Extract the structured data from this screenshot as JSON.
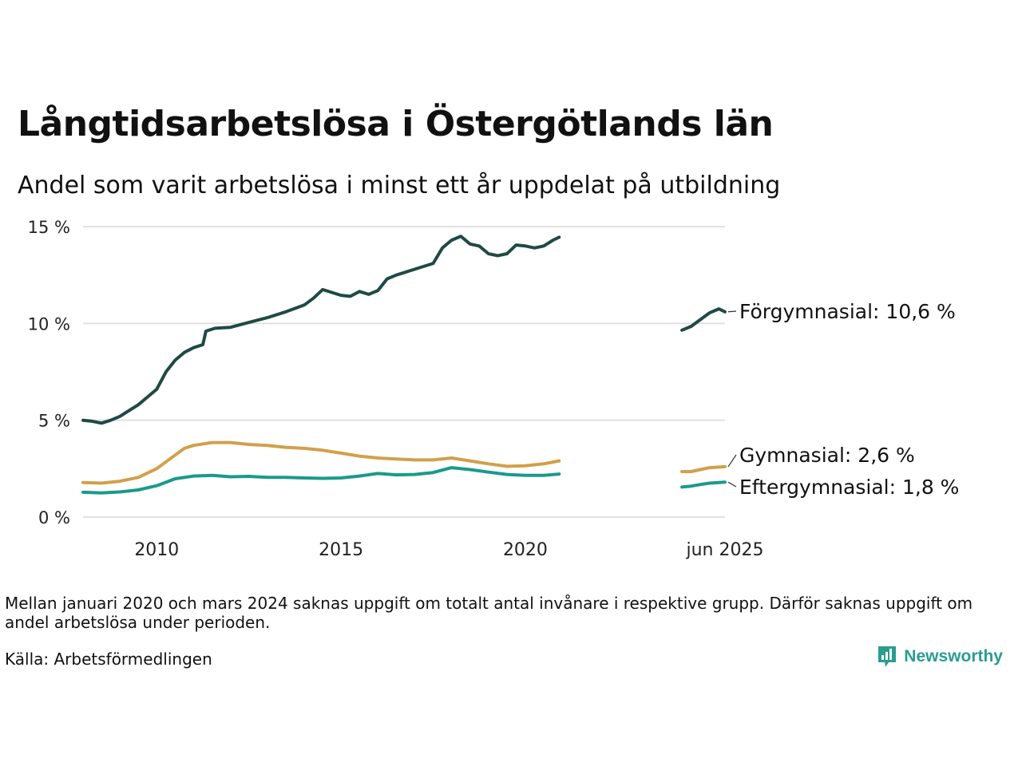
{
  "title": "Långtidsarbetslösa i Östergötlands län",
  "subtitle": "Andel som varit arbetslösa i minst ett år uppdelat på utbildning",
  "note": "Mellan januari 2020 och mars 2024 saknas uppgift om totalt antal invånare i respektive grupp. Därför saknas uppgift om andel arbetslösa under perioden.",
  "source": "Källa: Arbetsförmedlingen",
  "logo": {
    "text": "Newsworthy",
    "icon": "bar-chart-speech-bubble-icon",
    "color": "#2a9d8f"
  },
  "chart_data": {
    "type": "line",
    "xlim": [
      "2008-01",
      "2025-06"
    ],
    "ylim": [
      0,
      15
    ],
    "y_ticks": [
      {
        "value": 0,
        "label": "0 %"
      },
      {
        "value": 5,
        "label": "5 %"
      },
      {
        "value": 10,
        "label": "10 %"
      },
      {
        "value": 15,
        "label": "15 %"
      }
    ],
    "x_ticks": [
      {
        "value": "2010-01",
        "label": "2010"
      },
      {
        "value": "2015-01",
        "label": "2015"
      },
      {
        "value": "2020-01",
        "label": "2020"
      },
      {
        "value": "2025-06",
        "label": "jun 2025"
      }
    ],
    "grid": "horizontal",
    "legend": "end-of-line labels",
    "series": [
      {
        "label": "Förgymnasial: 10,6 %",
        "color": "#1f4a45",
        "segments": [
          [
            [
              "2008-01",
              5.0
            ],
            [
              "2008-04",
              4.95
            ],
            [
              "2008-07",
              4.85
            ],
            [
              "2008-10",
              5.0
            ],
            [
              "2009-01",
              5.2
            ],
            [
              "2009-04",
              5.5
            ],
            [
              "2009-07",
              5.8
            ],
            [
              "2009-10",
              6.2
            ],
            [
              "2010-01",
              6.6
            ],
            [
              "2010-04",
              7.5
            ],
            [
              "2010-07",
              8.1
            ],
            [
              "2010-10",
              8.5
            ],
            [
              "2011-01",
              8.75
            ],
            [
              "2011-04",
              8.9
            ],
            [
              "2011-05",
              9.6
            ],
            [
              "2011-08",
              9.75
            ],
            [
              "2012-01",
              9.8
            ],
            [
              "2012-07",
              10.05
            ],
            [
              "2013-01",
              10.3
            ],
            [
              "2013-07",
              10.6
            ],
            [
              "2014-01",
              10.95
            ],
            [
              "2014-04",
              11.3
            ],
            [
              "2014-07",
              11.75
            ],
            [
              "2014-10",
              11.6
            ],
            [
              "2015-01",
              11.45
            ],
            [
              "2015-04",
              11.4
            ],
            [
              "2015-07",
              11.65
            ],
            [
              "2015-10",
              11.5
            ],
            [
              "2016-01",
              11.7
            ],
            [
              "2016-04",
              12.3
            ],
            [
              "2016-07",
              12.5
            ],
            [
              "2017-01",
              12.8
            ],
            [
              "2017-07",
              13.1
            ],
            [
              "2017-10",
              13.9
            ],
            [
              "2018-01",
              14.3
            ],
            [
              "2018-04",
              14.5
            ],
            [
              "2018-07",
              14.1
            ],
            [
              "2018-10",
              14.0
            ],
            [
              "2019-01",
              13.6
            ],
            [
              "2019-04",
              13.5
            ],
            [
              "2019-07",
              13.6
            ],
            [
              "2019-10",
              14.05
            ],
            [
              "2020-01",
              14.0
            ],
            [
              "2020-04",
              13.9
            ],
            [
              "2020-07",
              14.0
            ],
            [
              "2020-10",
              14.3
            ],
            [
              "2020-12",
              14.45
            ]
          ],
          [
            [
              "2024-04",
              9.65
            ],
            [
              "2024-07",
              9.85
            ],
            [
              "2024-10",
              10.2
            ],
            [
              "2025-01",
              10.55
            ],
            [
              "2025-04",
              10.75
            ],
            [
              "2025-06",
              10.6
            ]
          ]
        ]
      },
      {
        "label": "Gymnasial:  2,6 %",
        "color": "#d1a04a",
        "segments": [
          [
            [
              "2008-01",
              1.78
            ],
            [
              "2008-07",
              1.75
            ],
            [
              "2009-01",
              1.85
            ],
            [
              "2009-07",
              2.05
            ],
            [
              "2010-01",
              2.5
            ],
            [
              "2010-07",
              3.2
            ],
            [
              "2010-10",
              3.55
            ],
            [
              "2011-01",
              3.7
            ],
            [
              "2011-07",
              3.85
            ],
            [
              "2012-01",
              3.85
            ],
            [
              "2012-07",
              3.75
            ],
            [
              "2013-01",
              3.7
            ],
            [
              "2013-07",
              3.6
            ],
            [
              "2014-01",
              3.55
            ],
            [
              "2014-07",
              3.45
            ],
            [
              "2015-01",
              3.3
            ],
            [
              "2015-07",
              3.15
            ],
            [
              "2016-01",
              3.05
            ],
            [
              "2016-07",
              3.0
            ],
            [
              "2017-01",
              2.95
            ],
            [
              "2017-07",
              2.95
            ],
            [
              "2018-01",
              3.05
            ],
            [
              "2018-07",
              2.9
            ],
            [
              "2019-01",
              2.75
            ],
            [
              "2019-07",
              2.62
            ],
            [
              "2020-01",
              2.65
            ],
            [
              "2020-07",
              2.75
            ],
            [
              "2020-12",
              2.9
            ]
          ],
          [
            [
              "2024-04",
              2.35
            ],
            [
              "2024-07",
              2.35
            ],
            [
              "2024-10",
              2.45
            ],
            [
              "2025-01",
              2.55
            ],
            [
              "2025-06",
              2.6
            ]
          ]
        ]
      },
      {
        "label": "Eftergymnasial:  1,8 %",
        "color": "#1a9a8a",
        "segments": [
          [
            [
              "2008-01",
              1.28
            ],
            [
              "2008-07",
              1.25
            ],
            [
              "2009-01",
              1.3
            ],
            [
              "2009-07",
              1.4
            ],
            [
              "2010-01",
              1.62
            ],
            [
              "2010-07",
              1.98
            ],
            [
              "2011-01",
              2.12
            ],
            [
              "2011-07",
              2.15
            ],
            [
              "2012-01",
              2.08
            ],
            [
              "2012-07",
              2.1
            ],
            [
              "2013-01",
              2.05
            ],
            [
              "2013-07",
              2.05
            ],
            [
              "2014-01",
              2.02
            ],
            [
              "2014-07",
              2.0
            ],
            [
              "2015-01",
              2.02
            ],
            [
              "2015-07",
              2.12
            ],
            [
              "2016-01",
              2.25
            ],
            [
              "2016-07",
              2.18
            ],
            [
              "2017-01",
              2.2
            ],
            [
              "2017-07",
              2.3
            ],
            [
              "2018-01",
              2.55
            ],
            [
              "2018-07",
              2.45
            ],
            [
              "2019-01",
              2.32
            ],
            [
              "2019-07",
              2.2
            ],
            [
              "2020-01",
              2.15
            ],
            [
              "2020-07",
              2.15
            ],
            [
              "2020-12",
              2.22
            ]
          ],
          [
            [
              "2024-04",
              1.55
            ],
            [
              "2024-07",
              1.6
            ],
            [
              "2024-10",
              1.68
            ],
            [
              "2025-01",
              1.75
            ],
            [
              "2025-06",
              1.8
            ]
          ]
        ]
      }
    ]
  }
}
